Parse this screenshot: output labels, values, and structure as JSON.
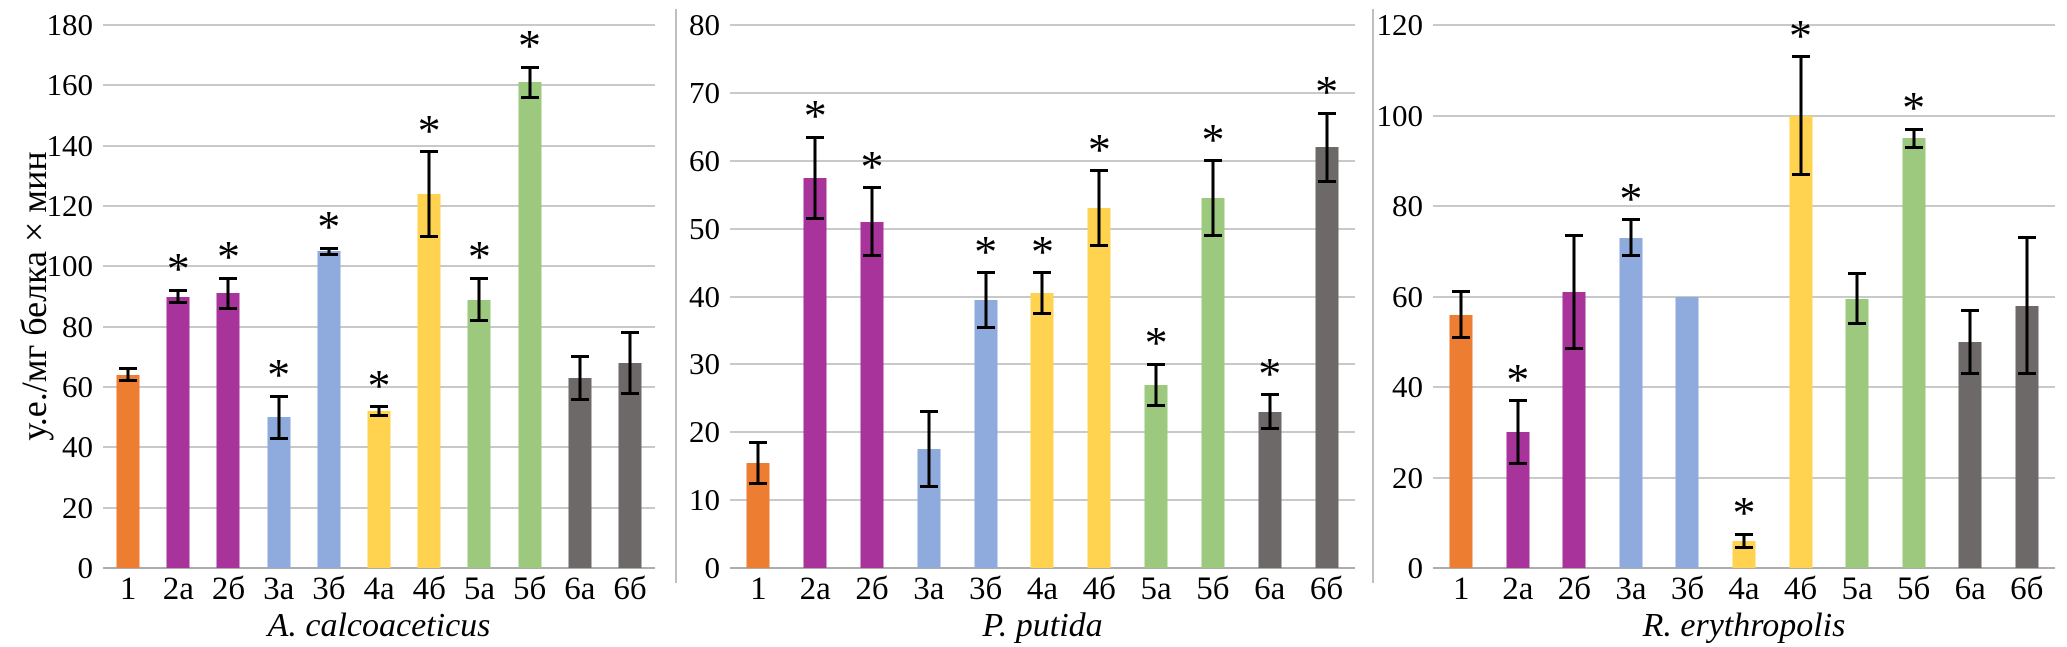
{
  "figure": {
    "ylabel": "у.е./мг белка × мин",
    "significance_marker": "*"
  },
  "palette": {
    "orange": "#ED7D31",
    "magenta": "#A8339A",
    "blue": "#8FAADC",
    "yellow": "#FFD34F",
    "green": "#9CC97D",
    "gray": "#6E6969",
    "gridline": "#C9C9C9",
    "axis_line": "#ADADAD",
    "error_bar": "#000000"
  },
  "bar_color_keys": [
    "orange",
    "magenta",
    "magenta",
    "blue",
    "blue",
    "yellow",
    "yellow",
    "green",
    "green",
    "gray",
    "gray"
  ],
  "chart_data": [
    {
      "type": "bar",
      "title": "A. calcoaceticus",
      "ylabel": "у.е./мг белка × мин",
      "ylim": [
        0,
        180
      ],
      "ystep": 20,
      "grid": true,
      "legend": "none",
      "categories": [
        "1",
        "2а",
        "2б",
        "3а",
        "3б",
        "4а",
        "4б",
        "5а",
        "5б",
        "6а",
        "6б"
      ],
      "values": [
        64,
        90,
        91,
        50,
        105,
        52,
        124,
        89,
        161,
        63,
        68
      ],
      "errors": [
        2,
        2,
        5,
        7,
        1,
        1.5,
        14,
        7,
        5,
        7,
        10
      ],
      "significant": [
        false,
        true,
        true,
        true,
        true,
        true,
        true,
        true,
        true,
        false,
        false
      ]
    },
    {
      "type": "bar",
      "title": "P. putida",
      "ylabel": "у.е./мг белка × мин",
      "ylim": [
        0,
        80
      ],
      "ystep": 10,
      "grid": true,
      "legend": "none",
      "categories": [
        "1",
        "2а",
        "2б",
        "3а",
        "3б",
        "4а",
        "4б",
        "5а",
        "5б",
        "6а",
        "6б"
      ],
      "values": [
        15.5,
        57.5,
        51,
        17.5,
        39.5,
        40.5,
        53,
        27,
        54.5,
        23,
        62
      ],
      "errors": [
        3,
        6,
        5,
        5.5,
        4,
        3,
        5.5,
        3,
        5.5,
        2.5,
        5
      ],
      "significant": [
        false,
        true,
        true,
        false,
        true,
        true,
        true,
        true,
        true,
        true,
        true
      ]
    },
    {
      "type": "bar",
      "title": "R. erythropolis",
      "ylabel": "у.е./мг белка × мин",
      "ylim": [
        0,
        120
      ],
      "ystep": 20,
      "grid": true,
      "legend": "none",
      "categories": [
        "1",
        "2а",
        "2б",
        "3а",
        "3б",
        "4а",
        "4б",
        "5а",
        "5б",
        "6а",
        "6б"
      ],
      "values": [
        56,
        30,
        61,
        73,
        60,
        6,
        100,
        59.5,
        95,
        50,
        58
      ],
      "errors": [
        5,
        7,
        12.5,
        4,
        0,
        1.5,
        13,
        5.5,
        2,
        7,
        15
      ],
      "significant": [
        false,
        true,
        false,
        true,
        false,
        true,
        true,
        false,
        true,
        false,
        false
      ]
    }
  ]
}
